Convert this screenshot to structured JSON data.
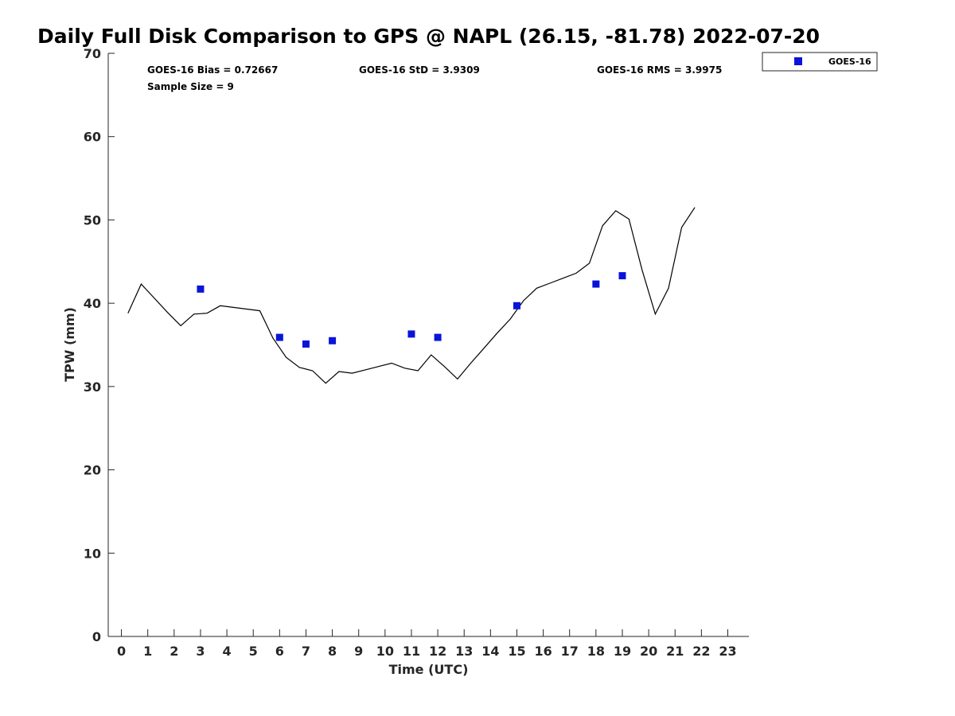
{
  "chart_data": {
    "type": "line",
    "title": "Daily Full Disk Comparison to GPS @ NAPL (26.15, -81.78) 2022-07-20",
    "xlabel": "Time (UTC)",
    "ylabel": "TPW (mm)",
    "xlim": [
      -0.5,
      23.8
    ],
    "ylim": [
      0,
      70
    ],
    "xticks": [
      "0",
      "1",
      "2",
      "3",
      "4",
      "5",
      "6",
      "7",
      "8",
      "9",
      "10",
      "11",
      "12",
      "13",
      "14",
      "15",
      "16",
      "17",
      "18",
      "19",
      "20",
      "21",
      "22",
      "23"
    ],
    "yticks": [
      "0",
      "10",
      "20",
      "30",
      "40",
      "50",
      "60",
      "70"
    ],
    "grid": false,
    "legend_position": "top-right",
    "stats": {
      "bias": "GOES-16 Bias = 0.72667",
      "std": "GOES-16 StD = 3.9309",
      "rms": "GOES-16 RMS = 3.9975",
      "sample_size": "Sample Size = 9"
    },
    "series": [
      {
        "color": "#000000",
        "x": [
          0.25,
          0.75,
          1.25,
          1.75,
          2.25,
          2.75,
          3.25,
          3.75,
          4.25,
          4.75,
          5.25,
          5.75,
          6.25,
          6.75,
          7.25,
          7.75,
          8.25,
          8.75,
          9.25,
          9.75,
          10.25,
          10.75,
          11.25,
          11.75,
          12.25,
          12.75,
          13.25,
          13.75,
          14.25,
          14.75,
          15.25,
          15.75,
          16.25,
          16.75,
          17.25,
          17.75,
          18.25,
          18.75,
          19.25,
          19.75,
          20.25,
          20.75,
          21.25,
          21.75
        ],
        "y": [
          38.8,
          42.3,
          40.6,
          38.9,
          37.3,
          38.7,
          38.8,
          39.7,
          39.5,
          39.3,
          39.1,
          35.8,
          33.5,
          32.3,
          31.9,
          30.4,
          31.8,
          31.6,
          32.0,
          32.4,
          32.8,
          32.2,
          31.9,
          33.8,
          32.4,
          30.9,
          32.8,
          34.6,
          36.4,
          38.1,
          40.3,
          41.8,
          42.4,
          43.0,
          43.6,
          44.8,
          49.3,
          51.1,
          50.1,
          44.0,
          38.7,
          41.8,
          49.1,
          51.5
        ]
      },
      {
        "name": "GOES-16",
        "color": "#0a14d9",
        "x": [
          3,
          6,
          7,
          8,
          11,
          12,
          15,
          18,
          19
        ],
        "y": [
          41.7,
          35.9,
          35.1,
          35.5,
          36.3,
          35.9,
          39.7,
          42.3,
          43.3
        ]
      }
    ]
  }
}
